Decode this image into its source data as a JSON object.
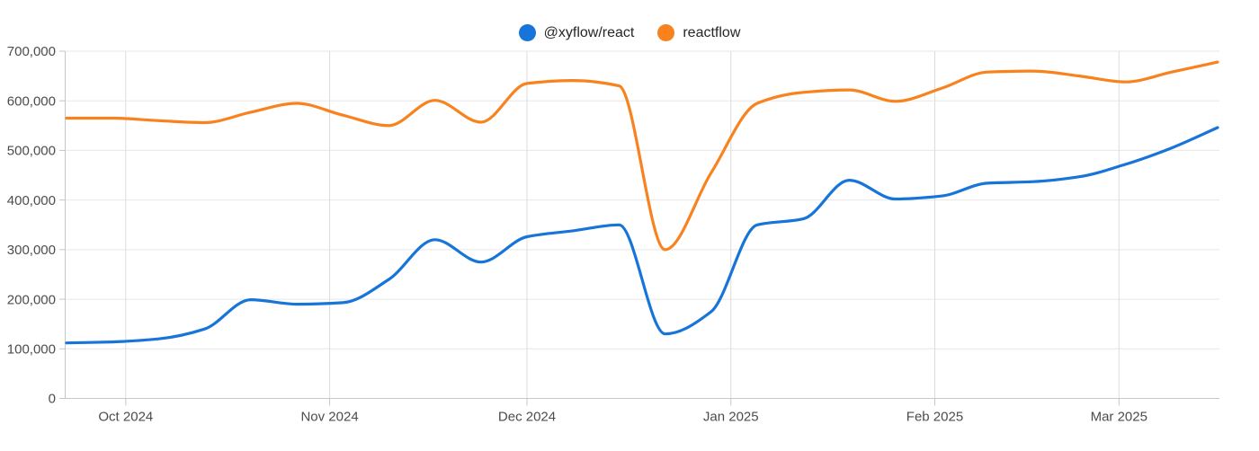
{
  "chart_data": {
    "type": "line",
    "title": "",
    "xlabel": "",
    "ylabel": "",
    "grid": true,
    "legend_position": "top",
    "curve": "monotone",
    "ylim": [
      0,
      700000
    ],
    "x": [
      "2024-09-22",
      "2024-09-29",
      "2024-10-06",
      "2024-10-13",
      "2024-10-20",
      "2024-10-27",
      "2024-11-03",
      "2024-11-10",
      "2024-11-17",
      "2024-11-24",
      "2024-12-01",
      "2024-12-08",
      "2024-12-15",
      "2024-12-22",
      "2024-12-29",
      "2025-01-05",
      "2025-01-12",
      "2025-01-19",
      "2025-01-26",
      "2025-02-02",
      "2025-02-09",
      "2025-02-16",
      "2025-02-23",
      "2025-03-02",
      "2025-03-09",
      "2025-03-16"
    ],
    "series": [
      {
        "name": "@xyflow/react",
        "color": "#1774d8",
        "values": [
          112000,
          114000,
          120000,
          140000,
          199000,
          190000,
          193000,
          240000,
          320000,
          275000,
          326000,
          338000,
          350000,
          130000,
          175000,
          350000,
          362000,
          440000,
          402000,
          408000,
          434000,
          437000,
          447000,
          472000,
          505000,
          546000
        ]
      },
      {
        "name": "reactflow",
        "color": "#f8821e",
        "values": [
          565000,
          565000,
          560000,
          556000,
          577000,
          595000,
          571000,
          550000,
          601000,
          557000,
          635000,
          641000,
          630000,
          300000,
          455000,
          595000,
          617000,
          622000,
          599000,
          625000,
          658000,
          660000,
          650000,
          638000,
          658000,
          678000
        ]
      }
    ],
    "y_ticks": [
      {
        "value": 0,
        "label": "0"
      },
      {
        "value": 100000,
        "label": "100,000"
      },
      {
        "value": 200000,
        "label": "200,000"
      },
      {
        "value": 300000,
        "label": "300,000"
      },
      {
        "value": 400000,
        "label": "400,000"
      },
      {
        "value": 500000,
        "label": "500,000"
      },
      {
        "value": 600000,
        "label": "600,000"
      },
      {
        "value": 700000,
        "label": "700,000"
      }
    ],
    "x_ticks": [
      {
        "date": "2024-10-01",
        "label": "Oct 2024"
      },
      {
        "date": "2024-11-01",
        "label": "Nov 2024"
      },
      {
        "date": "2024-12-01",
        "label": "Dec 2024"
      },
      {
        "date": "2025-01-01",
        "label": "Jan 2025"
      },
      {
        "date": "2025-02-01",
        "label": "Feb 2025"
      },
      {
        "date": "2025-03-01",
        "label": "Mar 2025"
      }
    ],
    "colors": {
      "grid_horizontal": "#e7e7e7",
      "grid_vertical": "#dcdcdc",
      "axis": "#c6c6c6",
      "tick_label": "#4c4c4c"
    }
  }
}
